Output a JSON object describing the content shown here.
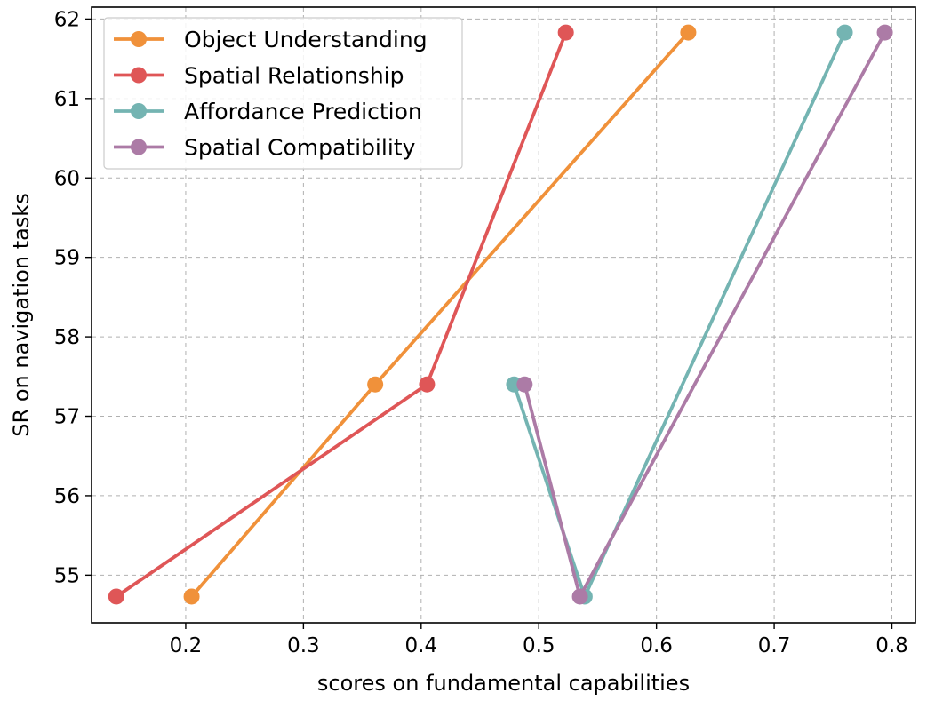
{
  "chart_data": {
    "type": "line",
    "title": "",
    "xlabel": "scores on fundamental capabilities",
    "ylabel": "SR on navigation tasks",
    "xlim": [
      0.12,
      0.82
    ],
    "ylim": [
      54.4,
      62.15
    ],
    "xticks": [
      0.2,
      0.3,
      0.4,
      0.5,
      0.6,
      0.7,
      0.8
    ],
    "xtick_labels": [
      "0.2",
      "0.3",
      "0.4",
      "0.5",
      "0.6",
      "0.7",
      "0.8"
    ],
    "yticks": [
      55,
      56,
      57,
      58,
      59,
      60,
      61,
      62
    ],
    "ytick_labels": [
      "55",
      "56",
      "57",
      "58",
      "59",
      "60",
      "61",
      "62"
    ],
    "grid": true,
    "legend_position": "top-left",
    "series": [
      {
        "name": "Object Understanding",
        "color": "#f0913a",
        "x": [
          0.205,
          0.361,
          0.627
        ],
        "y": [
          54.73,
          57.4,
          61.83
        ]
      },
      {
        "name": "Spatial Relationship",
        "color": "#df5657",
        "x": [
          0.141,
          0.405,
          0.523
        ],
        "y": [
          54.73,
          57.4,
          61.83
        ]
      },
      {
        "name": "Affordance Prediction",
        "color": "#74b4b2",
        "x": [
          0.479,
          0.539,
          0.76
        ],
        "y": [
          57.4,
          54.73,
          61.83
        ]
      },
      {
        "name": "Spatial Compatibility",
        "color": "#ac7ba6",
        "x": [
          0.488,
          0.535,
          0.794
        ],
        "y": [
          57.4,
          54.73,
          61.83
        ]
      }
    ]
  }
}
